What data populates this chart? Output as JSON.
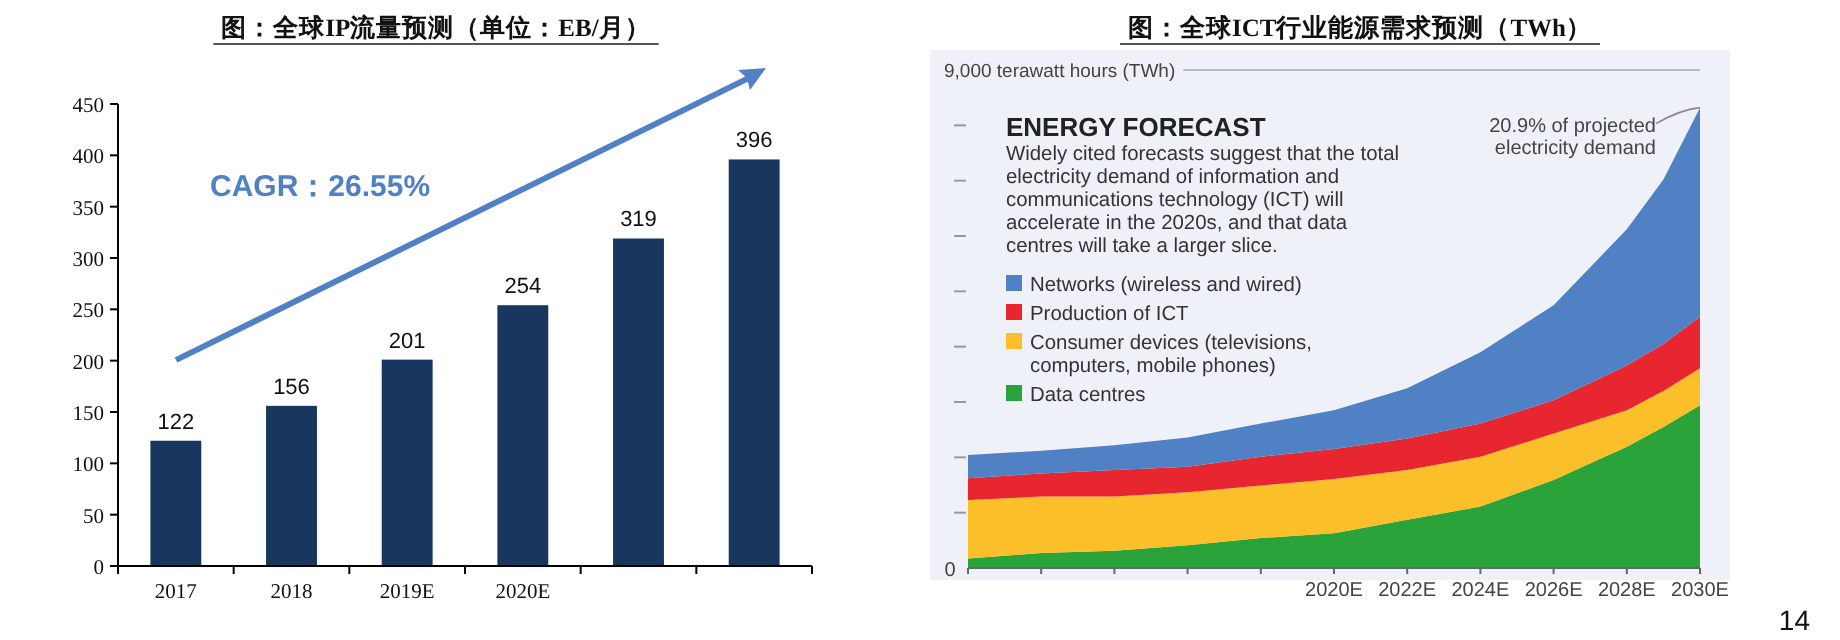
{
  "chart_data": [
    {
      "type": "bar",
      "title": "图：全球IP流量预测（单位：EB/月）",
      "categories": [
        "2017",
        "2018",
        "2019E",
        "2020E",
        null,
        null
      ],
      "values": [
        122,
        156,
        201,
        254,
        319,
        396
      ],
      "color": "#17375e",
      "ylim": [
        0,
        450
      ],
      "yticks": [
        0,
        50,
        100,
        150,
        200,
        250,
        300,
        350,
        400,
        450
      ],
      "data_labels": true,
      "grid": false,
      "annotations": [
        "CAGR：26.55%"
      ]
    },
    {
      "type": "area",
      "stacked": true,
      "title": "图：全球ICT行业能源需求预测（TWh）",
      "x": [
        2010,
        2012,
        2014,
        2016,
        2018,
        2020,
        2022,
        2024,
        2026,
        2028,
        2029,
        2030
      ],
      "xlim": [
        2010,
        2030
      ],
      "xticks": [
        {
          "value": 2010,
          "label": null
        },
        {
          "value": 2012,
          "label": null
        },
        {
          "value": 2014,
          "label": null
        },
        {
          "value": 2016,
          "label": null
        },
        {
          "value": 2018,
          "label": null
        },
        {
          "value": 2020,
          "label": "2020E"
        },
        {
          "value": 2022,
          "label": "2022E"
        },
        {
          "value": 2024,
          "label": "2024E"
        },
        {
          "value": 2026,
          "label": "2026E"
        },
        {
          "value": 2028,
          "label": "2028E"
        },
        {
          "value": 2030,
          "label": "2030E"
        }
      ],
      "ylim": [
        0,
        9000
      ],
      "yticks": [
        0,
        {
          "value": 1000,
          "label": null
        },
        {
          "value": 2000,
          "label": null
        },
        {
          "value": 3000,
          "label": null
        },
        {
          "value": 4000,
          "label": null
        },
        {
          "value": 5000,
          "label": null
        },
        {
          "value": 6000,
          "label": null
        },
        {
          "value": 7000,
          "label": null
        },
        {
          "value": 8000,
          "label": null
        },
        {
          "value": 9000,
          "label": "9,000 terawatt hours (TWh)"
        }
      ],
      "series": [
        {
          "name": "Data centres",
          "color": "#2aa43a",
          "values": [
            170,
            270,
            310,
            410,
            540,
            630,
            870,
            1110,
            1590,
            2190,
            2550,
            2940
          ]
        },
        {
          "name": "Consumer devices (televisions, computers, mobile phones)",
          "color": "#fbbf2a",
          "values": [
            1060,
            1020,
            980,
            960,
            950,
            980,
            900,
            900,
            840,
            660,
            650,
            670
          ]
        },
        {
          "name": "Production of ICT",
          "color": "#e8262f",
          "values": [
            390,
            420,
            480,
            460,
            520,
            540,
            570,
            600,
            600,
            810,
            850,
            930
          ]
        },
        {
          "name": "Networks (wireless and wired)",
          "color": "#4f81c4",
          "values": [
            420,
            410,
            450,
            530,
            600,
            700,
            910,
            1290,
            1720,
            2460,
            2970,
            3780
          ]
        }
      ],
      "legend": "left",
      "grid": false,
      "annotations": [
        "ENERGY FORECAST",
        "Widely cited forecasts suggest that the total electricity demand of information and communications technology (ICT) will accelerate in the 2020s, and that data centres will take a larger slice.",
        {
          "text": "20.9% of projected electricity demand",
          "x": 2030,
          "y": 8320
        },
        "14"
      ]
    }
  ]
}
